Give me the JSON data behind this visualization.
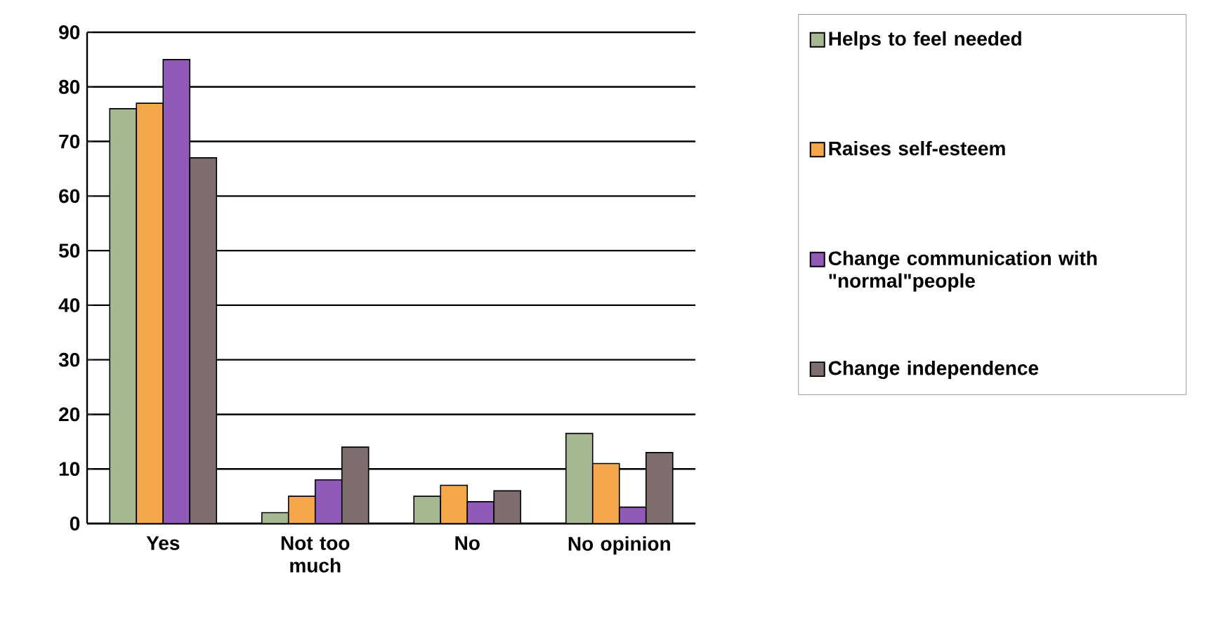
{
  "chart_data": {
    "type": "bar",
    "categories": [
      "Yes",
      "Not too much",
      "No",
      "No opinion"
    ],
    "series": [
      {
        "name": "Helps to feel needed",
        "color": "#a6b892",
        "values": [
          76,
          2,
          5,
          16.5
        ]
      },
      {
        "name": "Raises self-esteem",
        "color": "#f5a84a",
        "values": [
          77,
          5,
          7,
          11
        ]
      },
      {
        "name": "Change communication with \"normal\"people",
        "color": "#9159b8",
        "values": [
          85,
          8,
          4,
          3
        ]
      },
      {
        "name": "Change independence",
        "color": "#7f6e6e",
        "values": [
          67,
          14,
          6,
          13
        ]
      }
    ],
    "ylim": [
      0,
      90
    ],
    "yticks": [
      0,
      10,
      20,
      30,
      40,
      50,
      60,
      70,
      80,
      90
    ],
    "grid": "y",
    "legend": "right"
  }
}
